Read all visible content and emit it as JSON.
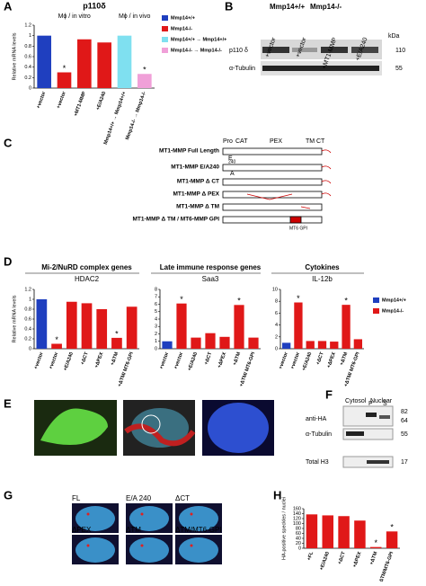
{
  "panel_labels": [
    "A",
    "B",
    "C",
    "D",
    "E",
    "F",
    "G",
    "H"
  ],
  "chart_data": [
    {
      "type": "bar",
      "title": "p110δ",
      "groups": [
        "Mϕ / in vitro",
        "Mϕ / in vivo"
      ],
      "ylabel": "Relative mRNA levels",
      "categories": [
        "+vector",
        "+vector",
        "+MT1-MMP",
        "+E/A240",
        "Mmp14+/+ → Mmp14+/+",
        "Mmp14-/- → Mmp14-/-"
      ],
      "values": [
        1.0,
        0.3,
        0.93,
        0.87,
        1.0,
        0.27
      ],
      "colors": [
        "#1f3fbf",
        "#e01818",
        "#e01818",
        "#e01818",
        "#7fe0f0",
        "#f0a0d8"
      ],
      "annotations": [
        null,
        "*",
        null,
        null,
        null,
        "*"
      ],
      "ylim": [
        0,
        1.2
      ],
      "yticks": [
        0,
        0.2,
        0.4,
        0.6,
        0.8,
        1,
        1.2
      ],
      "legend": [
        {
          "name": "Mmp14+/+",
          "color": "#1f3fbf"
        },
        {
          "name": "Mmp14-/-",
          "color": "#e01818"
        },
        {
          "name": "Mmp14+/+ → Mmp14+/+",
          "color": "#7fe0f0"
        },
        {
          "name": "Mmp14-/- → Mmp14-/-",
          "color": "#f0a0d8"
        }
      ]
    },
    {
      "type": "bar",
      "group_title": "Mi-2/NuRD complex genes",
      "title": "HDAC2",
      "ylabel": "Relative mRNA levels",
      "categories": [
        "+vector",
        "+vector",
        "+E/A240",
        "+ΔCT",
        "+ΔPEX",
        "+ΔTM",
        "+ΔTM/ MT6-GPI"
      ],
      "values": [
        1.0,
        0.1,
        0.95,
        0.92,
        0.8,
        0.22,
        0.85
      ],
      "colors": [
        "#1f3fbf",
        "#e01818",
        "#e01818",
        "#e01818",
        "#e01818",
        "#e01818",
        "#e01818"
      ],
      "annotations": [
        null,
        "*",
        null,
        null,
        null,
        "*",
        null
      ],
      "ylim": [
        0,
        1.2
      ],
      "yticks": [
        0,
        0.2,
        0.4,
        0.6,
        0.8,
        1,
        1.2
      ]
    },
    {
      "type": "bar",
      "group_title": "Late immune response genes",
      "title": "Saa3",
      "categories": [
        "+vector",
        "+vector",
        "+E/A240",
        "+ΔCT",
        "+ΔPEX",
        "+ΔTM",
        "+ΔTM/ MT6-GPI"
      ],
      "values": [
        1.0,
        6.1,
        1.5,
        2.1,
        1.6,
        5.9,
        1.5
      ],
      "colors": [
        "#1f3fbf",
        "#e01818",
        "#e01818",
        "#e01818",
        "#e01818",
        "#e01818",
        "#e01818"
      ],
      "annotations": [
        null,
        "*",
        null,
        null,
        null,
        "*",
        null
      ],
      "ylim": [
        0,
        8
      ],
      "yticks": [
        0,
        1,
        2,
        3,
        4,
        5,
        6,
        7,
        8
      ]
    },
    {
      "type": "bar",
      "group_title": "Cytokines",
      "title": "IL-12b",
      "categories": [
        "+vector",
        "+vector",
        "+E/A240",
        "+ΔCT",
        "+ΔPEX",
        "+ΔTM",
        "+ΔTM/ MT6-GPI"
      ],
      "values": [
        1.0,
        7.8,
        1.3,
        1.3,
        1.2,
        7.4,
        1.6
      ],
      "colors": [
        "#1f3fbf",
        "#e01818",
        "#e01818",
        "#e01818",
        "#e01818",
        "#e01818",
        "#e01818"
      ],
      "annotations": [
        null,
        "*",
        null,
        null,
        null,
        "*",
        null
      ],
      "ylim": [
        0,
        10
      ],
      "yticks": [
        0,
        2,
        4,
        6,
        8,
        10
      ],
      "legend": [
        {
          "name": "Mmp14+/+",
          "color": "#1f3fbf"
        },
        {
          "name": "Mmp14-/-",
          "color": "#e01818"
        }
      ]
    },
    {
      "type": "bar",
      "ylabel": "HA-positive speckles / nuclei",
      "categories": [
        "+FL",
        "+E/A240",
        "+ΔCT",
        "+ΔPEX",
        "+ΔTM",
        "+ΔTM/MT6-GPI"
      ],
      "values": [
        137,
        133,
        130,
        112,
        5,
        68
      ],
      "colors": [
        "#e01818",
        "#e01818",
        "#e01818",
        "#e01818",
        "#e01818",
        "#e01818"
      ],
      "annotations": [
        null,
        null,
        null,
        null,
        "*",
        "*"
      ],
      "ylim": [
        0,
        160
      ],
      "yticks": [
        0,
        20,
        40,
        60,
        80,
        100,
        120,
        140,
        160
      ]
    }
  ],
  "blot_b": {
    "genotypes": [
      "Mmp14+/+",
      "Mmp14-/-"
    ],
    "lanes": [
      "+vector",
      "+vector",
      "+MT1-MMP",
      "+E/A240"
    ],
    "kda": "kDa",
    "rows": [
      "p110 δ",
      "α-Tubulin"
    ],
    "sizes": [
      "110",
      "55"
    ]
  },
  "diagram_c": {
    "domains": [
      "Pro",
      "CAT",
      "PEX",
      "TM",
      "CT"
    ],
    "mutation": [
      "E",
      "240",
      "A"
    ],
    "constructs": [
      "MT1-MMP Full Length",
      "MT1-MMP E/A240",
      "MT1-MMP Δ CT",
      "MT1-MMP Δ PEX",
      "MT1-MMP Δ TM",
      "MT1-MMP Δ TM / MT6-MMP GPI"
    ],
    "gpi": "MT6 GPI"
  },
  "blot_f": {
    "fractions": [
      "Cytosol",
      "Nuclear"
    ],
    "lanes": [
      "P",
      "S"
    ],
    "rows": [
      "anti-HA",
      "α-Tubulin",
      "Total H3"
    ],
    "sizes": [
      "82",
      "64",
      "55",
      "17"
    ]
  },
  "images_g": {
    "labels": [
      "FL",
      "E/A 240",
      "ΔCT",
      "ΔPEX",
      "ΔTM",
      "ΔTM/MT6-GPI"
    ]
  }
}
